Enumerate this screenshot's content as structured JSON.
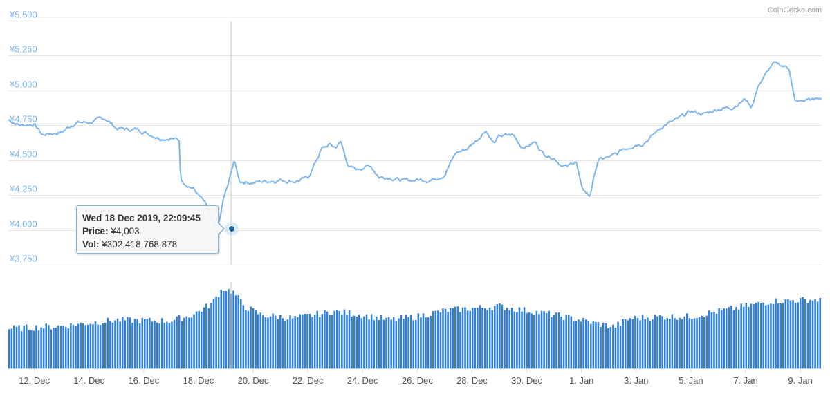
{
  "credit": "CoinGecko.com",
  "colors": {
    "price_line": "#7cb5ec",
    "volume_bar": "#2f7ed8",
    "marker": "#1a5fa8",
    "axis_label": "#7cb5ec"
  },
  "tooltip": {
    "date": "Wed 18 Dec 2019, 22:09:45",
    "price_label": "Price:",
    "price_value": "¥4,003",
    "vol_label": "Vol:",
    "vol_value": "¥302,418,768,878"
  },
  "chart_data": [
    {
      "type": "line",
      "y_tick_labels": [
        "¥5,500",
        "¥5,250",
        "¥5,000",
        "¥4,750",
        "¥4,500",
        "¥4,250",
        "¥4,000",
        "¥3,750"
      ],
      "ylim": [
        3750,
        5500
      ],
      "x_tick_labels": [
        "12. Dec",
        "14. Dec",
        "16. Dec",
        "18. Dec",
        "20. Dec",
        "22. Dec",
        "24. Dec",
        "26. Dec",
        "28. Dec",
        "30. Dec",
        "1. Jan",
        "3. Jan",
        "5. Jan",
        "7. Jan",
        "9. Jan"
      ],
      "x_tick_days": [
        1,
        3,
        5,
        7,
        9,
        11,
        13,
        15,
        17,
        19,
        21,
        23,
        25,
        27,
        29
      ],
      "xlim_days": [
        0.05,
        29.78
      ],
      "grid": true,
      "series": [
        {
          "x_days": [
            0.05,
            0.5,
            1.0,
            1.3,
            1.5,
            2.0,
            2.5,
            3.0,
            3.6,
            4.0,
            4.4,
            4.8,
            5.2,
            5.6,
            6.0,
            6.3,
            6.35,
            6.8,
            7.0,
            7.2,
            7.4,
            7.5,
            7.6,
            7.8,
            7.9,
            8.1,
            8.3,
            8.5,
            9.0,
            9.5,
            10.0,
            10.5,
            11.0,
            11.5,
            11.8,
            12.0,
            12.2,
            12.5,
            12.8,
            13.0,
            13.3,
            13.6,
            14.0,
            14.5,
            15.0,
            15.5,
            16.0,
            16.4,
            16.8,
            17.2,
            17.5,
            17.8,
            18.0,
            18.5,
            18.8,
            19.0,
            19.3,
            19.6,
            20.0,
            20.2,
            20.5,
            20.8,
            21.0,
            21.3,
            21.6,
            22.0,
            22.3,
            22.5,
            22.8,
            23.0,
            23.2,
            23.5,
            24.0,
            24.5,
            25.0,
            25.5,
            26.0,
            26.5,
            27.0,
            27.2,
            27.5,
            28.0,
            28.3,
            28.6,
            28.8,
            29.1,
            29.3,
            29.5,
            29.78
          ],
          "y": [
            4790,
            4750,
            4760,
            4680,
            4690,
            4700,
            4770,
            4770,
            4800,
            4730,
            4720,
            4720,
            4690,
            4660,
            4660,
            4640,
            4360,
            4300,
            4250,
            4200,
            4130,
            4060,
            4003,
            4080,
            4210,
            4330,
            4500,
            4350,
            4340,
            4350,
            4360,
            4350,
            4370,
            4580,
            4610,
            4590,
            4630,
            4450,
            4430,
            4450,
            4460,
            4380,
            4380,
            4350,
            4360,
            4360,
            4400,
            4550,
            4580,
            4650,
            4720,
            4620,
            4670,
            4680,
            4600,
            4600,
            4630,
            4550,
            4520,
            4480,
            4450,
            4500,
            4300,
            4240,
            4500,
            4520,
            4540,
            4580,
            4600,
            4620,
            4620,
            4660,
            4750,
            4790,
            4850,
            4830,
            4870,
            4880,
            4940,
            4880,
            5050,
            5190,
            5180,
            5160,
            4920,
            4920,
            4940,
            4930,
            4950
          ]
        }
      ]
    },
    {
      "type": "bar",
      "series": [
        {
          "name": "Volume",
          "x_days": [
            0.05,
            2.0,
            4.0,
            6.0,
            6.8,
            7.5,
            7.9,
            8.3,
            8.7,
            9.3,
            10.5,
            12.0,
            13.0,
            14.0,
            15.0,
            16.0,
            18.0,
            20.0,
            21.0,
            22.2,
            22.8,
            24.0,
            25.0,
            26.0,
            27.0,
            28.0,
            29.78
          ],
          "y": [
            0.46,
            0.49,
            0.56,
            0.55,
            0.62,
            0.75,
            0.93,
            0.88,
            0.72,
            0.62,
            0.58,
            0.66,
            0.62,
            0.56,
            0.6,
            0.67,
            0.72,
            0.62,
            0.56,
            0.48,
            0.58,
            0.6,
            0.6,
            0.66,
            0.72,
            0.78,
            0.8
          ]
        }
      ]
    }
  ]
}
